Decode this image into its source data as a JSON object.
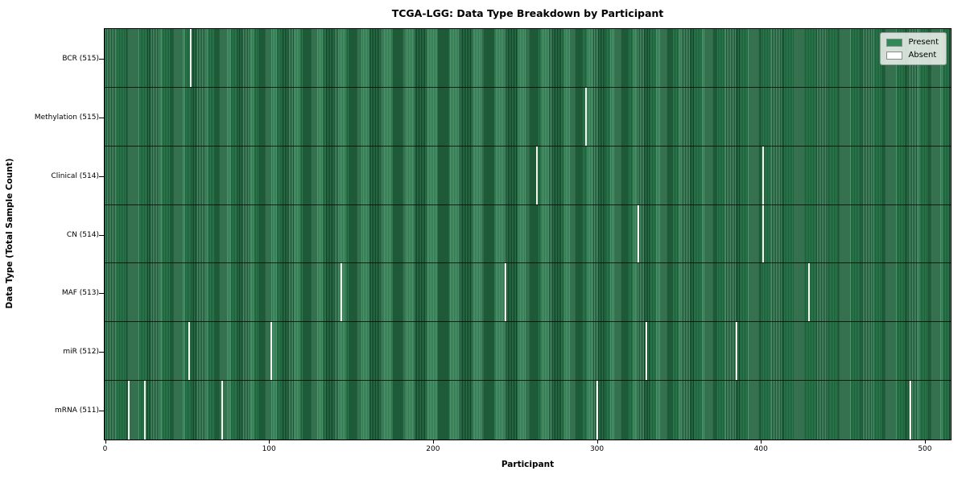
{
  "title": "TCGA-LGG: Data Type Breakdown by Participant",
  "axes": {
    "xlabel": "Participant",
    "ylabel": "Data Type (Total Sample Count)"
  },
  "legend": {
    "position": "upper right",
    "items": [
      {
        "label": "Present",
        "color": "#2e8b57"
      },
      {
        "label": "Absent",
        "color": "#ffffff"
      }
    ]
  },
  "colors": {
    "present_green": "#2e8b57",
    "bar_edge": "rgba(0,0,0,0.55)",
    "absent_white": "#f7f7f2",
    "plot_border": "#000000",
    "legend_bg": "rgba(234,240,234,0.88)"
  },
  "chart_data": {
    "type": "heatmap",
    "title": "TCGA-LGG: Data Type Breakdown by Participant",
    "xlabel": "Participant",
    "ylabel": "Data Type (Total Sample Count)",
    "x_ticks": [
      0,
      100,
      200,
      300,
      400,
      500
    ],
    "xlim": [
      0,
      516
    ],
    "n_participants": 516,
    "grid": false,
    "legend_entries": [
      "Present",
      "Absent"
    ],
    "legend_position": "upper right",
    "rows": [
      {
        "label": "BCR (515)",
        "data_type": "BCR",
        "present_count": 515,
        "absent_participants": [
          52
        ]
      },
      {
        "label": "Methylation (515)",
        "data_type": "Methylation",
        "present_count": 515,
        "absent_participants": [
          293
        ]
      },
      {
        "label": "Clinical (514)",
        "data_type": "Clinical",
        "present_count": 514,
        "absent_participants": [
          263,
          401
        ]
      },
      {
        "label": "CN (514)",
        "data_type": "CN",
        "present_count": 514,
        "absent_participants": [
          325,
          401
        ]
      },
      {
        "label": "MAF (513)",
        "data_type": "MAF",
        "present_count": 513,
        "absent_participants": [
          144,
          244,
          429
        ]
      },
      {
        "label": "miR (512)",
        "data_type": "miR",
        "present_count": 512,
        "absent_participants": [
          51,
          101,
          330,
          385
        ]
      },
      {
        "label": "mRNA (511)",
        "data_type": "mRNA",
        "present_count": 511,
        "absent_participants": [
          14,
          24,
          71,
          300,
          491
        ]
      }
    ]
  }
}
